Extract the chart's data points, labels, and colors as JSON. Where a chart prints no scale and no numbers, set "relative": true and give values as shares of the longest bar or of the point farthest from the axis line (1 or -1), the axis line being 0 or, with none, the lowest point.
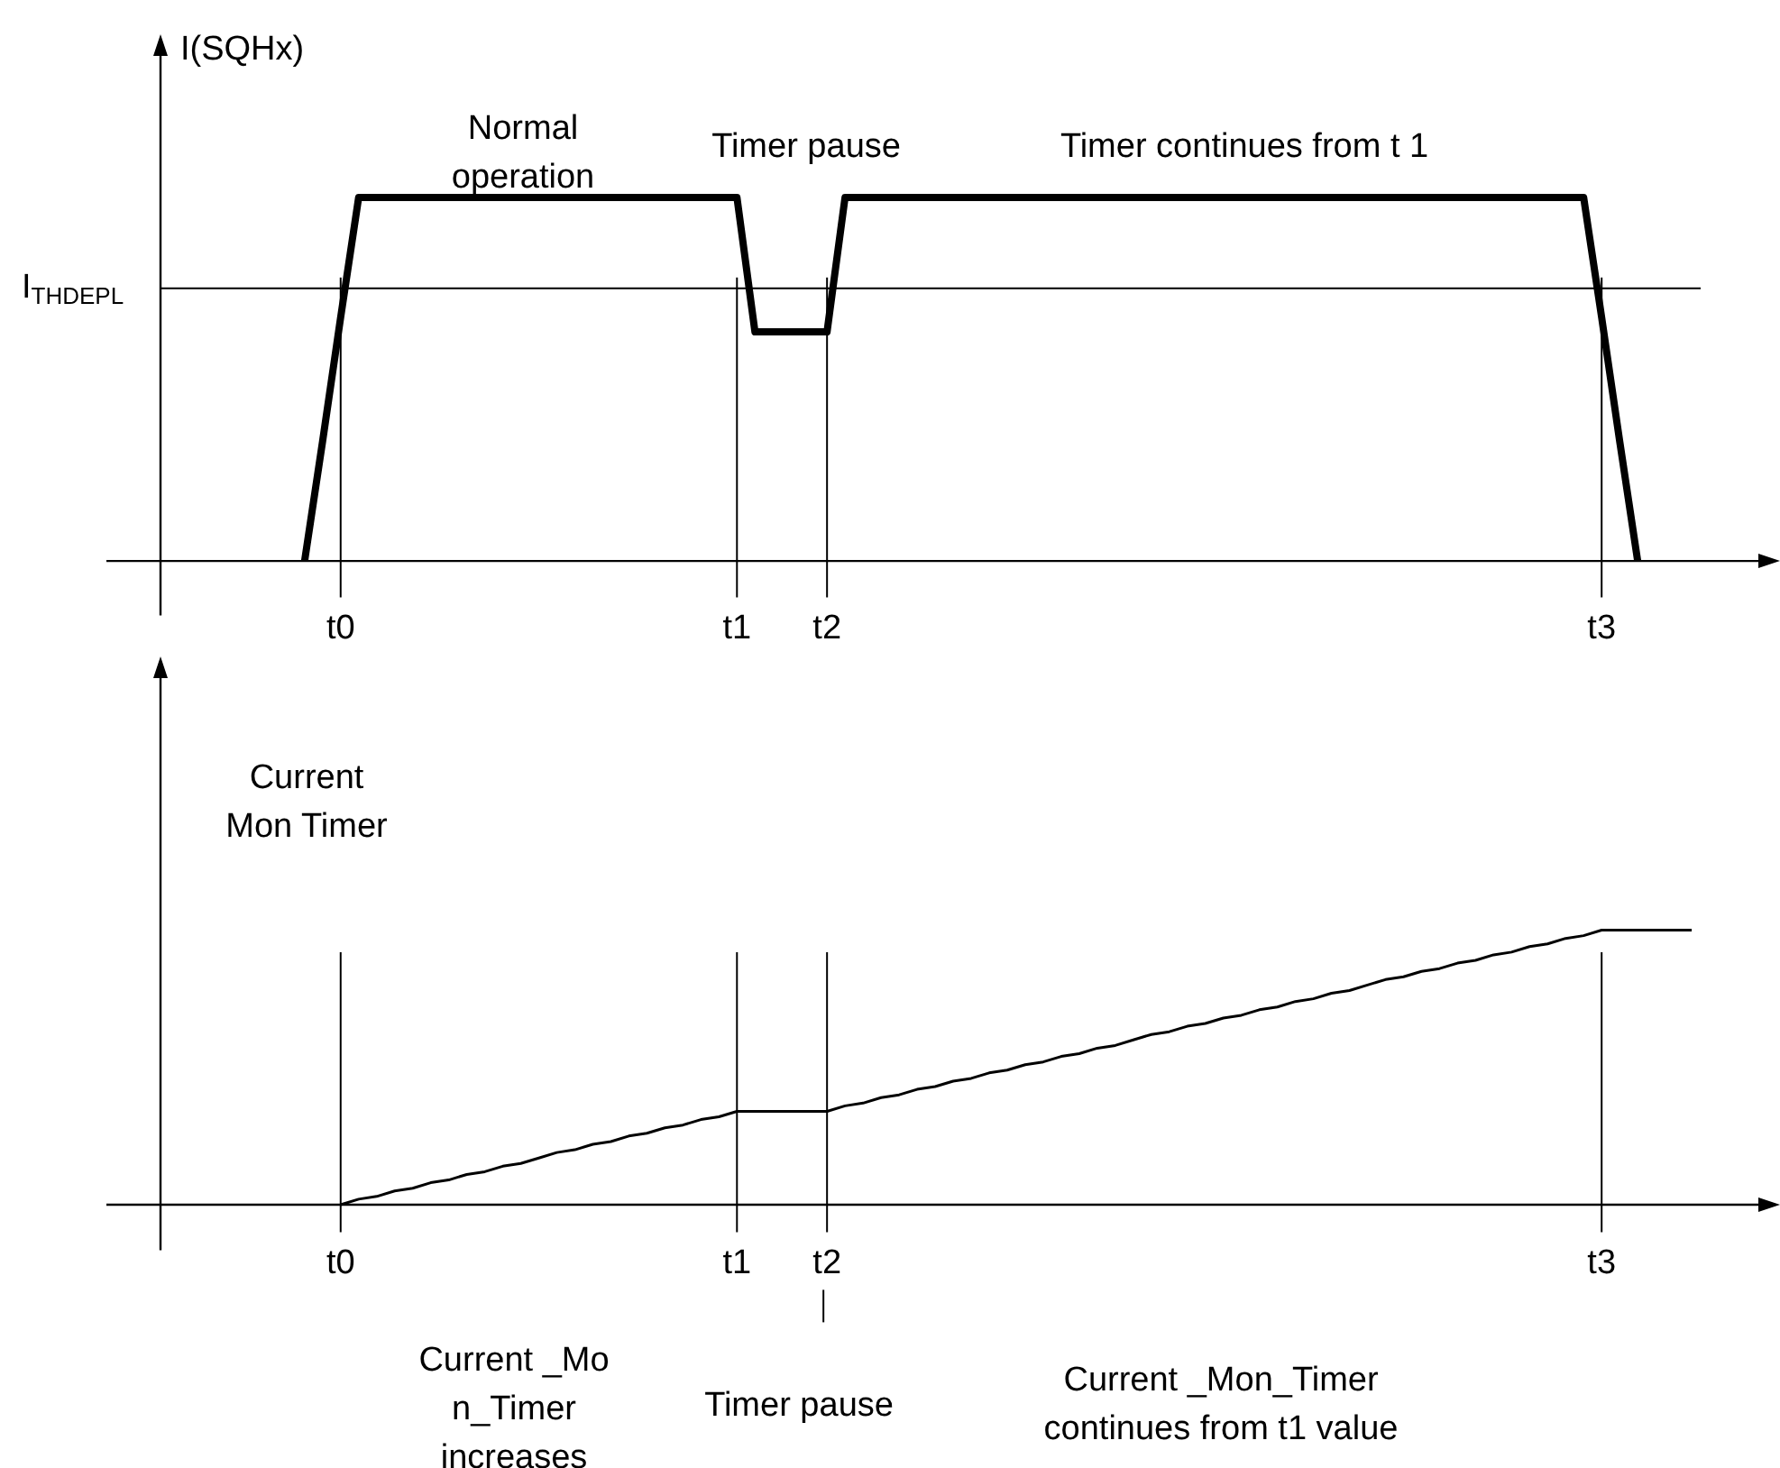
{
  "chart_data": [
    {
      "type": "line",
      "ylabel": "I(SQHx)",
      "relative": true,
      "legend": false,
      "grid": false,
      "marker": "none",
      "line_style": "solid",
      "tick_labels": "x",
      "categories": [
        null,
        null,
        null,
        null,
        null,
        null,
        null,
        null,
        null,
        null,
        "t0",
        null,
        null,
        null,
        null,
        null,
        null,
        null,
        null,
        null,
        null,
        null,
        null,
        null,
        null,
        null,
        null,
        null,
        null,
        null,
        null,
        null,
        "t1",
        null,
        null,
        null,
        null,
        "t2",
        null,
        null,
        null,
        null,
        null,
        null,
        null,
        null,
        null,
        null,
        null,
        null,
        null,
        null,
        null,
        null,
        null,
        null,
        null,
        null,
        null,
        null,
        null,
        null,
        null,
        null,
        null,
        null,
        null,
        null,
        null,
        null,
        null,
        null,
        null,
        null,
        null,
        null,
        null,
        null,
        null,
        null,
        "t3",
        null,
        null,
        null,
        null,
        null,
        null,
        null,
        null,
        null
      ],
      "series": [
        {
          "color": "#000000",
          "values": [
            null,
            null,
            null,
            null,
            null,
            null,
            null,
            null,
            0,
            0.33,
            0.67,
            1,
            1,
            1,
            1,
            1,
            1,
            1,
            1,
            1,
            1,
            1,
            1,
            1,
            1,
            1,
            1,
            1,
            1,
            1,
            1,
            1,
            1,
            0.63,
            0.63,
            0.63,
            0.63,
            0.63,
            1,
            1,
            1,
            1,
            1,
            1,
            1,
            1,
            1,
            1,
            1,
            1,
            1,
            1,
            1,
            1,
            1,
            1,
            1,
            1,
            1,
            1,
            1,
            1,
            1,
            1,
            1,
            1,
            1,
            1,
            1,
            1,
            1,
            1,
            1,
            1,
            1,
            1,
            1,
            1,
            1,
            1,
            0.67,
            0.33,
            0,
            null,
            null,
            null,
            null,
            null,
            null,
            null
          ]
        }
      ],
      "ref_lines": [
        {
          "axis": "y",
          "value": 0.75,
          "label": "I$_{THDEPL}$",
          "color": "#000000"
        },
        {
          "axis": "x",
          "value": "t0",
          "label": null,
          "color": "#000000"
        },
        {
          "axis": "x",
          "value": "t1",
          "label": null,
          "color": "#000000"
        },
        {
          "axis": "x",
          "value": "t2",
          "label": null,
          "color": "#000000"
        },
        {
          "axis": "x",
          "value": "t3",
          "label": null,
          "color": "#000000"
        }
      ],
      "annotations": [
        "Normal\noperation",
        "Timer pause",
        "Timer continues from t 1"
      ]
    },
    {
      "type": "line",
      "ylabel": "Current\nMon Timer",
      "relative": true,
      "legend": false,
      "grid": false,
      "marker": "none",
      "line_style": "solid",
      "tick_labels": "x",
      "categories": [
        null,
        null,
        null,
        null,
        null,
        null,
        null,
        null,
        null,
        null,
        "t0",
        null,
        null,
        null,
        null,
        null,
        null,
        null,
        null,
        null,
        null,
        null,
        null,
        null,
        null,
        null,
        null,
        null,
        null,
        null,
        null,
        null,
        "t1",
        null,
        null,
        null,
        null,
        "t2",
        null,
        null,
        null,
        null,
        null,
        null,
        null,
        null,
        null,
        null,
        null,
        null,
        null,
        null,
        null,
        null,
        null,
        null,
        null,
        null,
        null,
        null,
        null,
        null,
        null,
        null,
        null,
        null,
        null,
        null,
        null,
        null,
        null,
        null,
        null,
        null,
        null,
        null,
        null,
        null,
        null,
        null,
        "t3",
        null,
        null,
        null,
        null,
        null,
        null,
        null,
        null,
        null
      ],
      "series": [
        {
          "color": "#000000",
          "values": [
            null,
            null,
            null,
            null,
            null,
            null,
            null,
            null,
            null,
            null,
            0,
            0.02,
            0.03,
            0.05,
            0.06,
            0.08,
            0.09,
            0.11,
            0.12,
            0.14,
            0.15,
            0.17,
            0.19,
            0.2,
            0.22,
            0.23,
            0.25,
            0.26,
            0.28,
            0.29,
            0.31,
            0.32,
            0.34,
            0.34,
            0.34,
            0.34,
            0.34,
            0.34,
            0.36,
            0.37,
            0.39,
            0.4,
            0.42,
            0.43,
            0.45,
            0.46,
            0.48,
            0.49,
            0.51,
            0.52,
            0.54,
            0.55,
            0.57,
            0.58,
            0.6,
            0.62,
            0.63,
            0.65,
            0.66,
            0.68,
            0.69,
            0.71,
            0.72,
            0.74,
            0.75,
            0.77,
            0.78,
            0.8,
            0.82,
            0.83,
            0.85,
            0.86,
            0.88,
            0.89,
            0.91,
            0.92,
            0.94,
            0.95,
            0.97,
            0.98,
            1,
            1,
            1,
            1,
            1,
            1,
            null,
            null,
            null,
            null
          ]
        }
      ],
      "ref_lines": [
        {
          "axis": "x",
          "value": "t0",
          "label": null,
          "color": "#000000"
        },
        {
          "axis": "x",
          "value": "t1",
          "label": null,
          "color": "#000000"
        },
        {
          "axis": "x",
          "value": "t2",
          "label": null,
          "color": "#000000"
        },
        {
          "axis": "x",
          "value": "t3",
          "label": null,
          "color": "#000000"
        }
      ],
      "annotations": [
        "Current _Mo\nn_Timer\nincreases",
        "Timer pause",
        "Current _Mon_Timer\ncontinues from t1 value"
      ]
    }
  ]
}
